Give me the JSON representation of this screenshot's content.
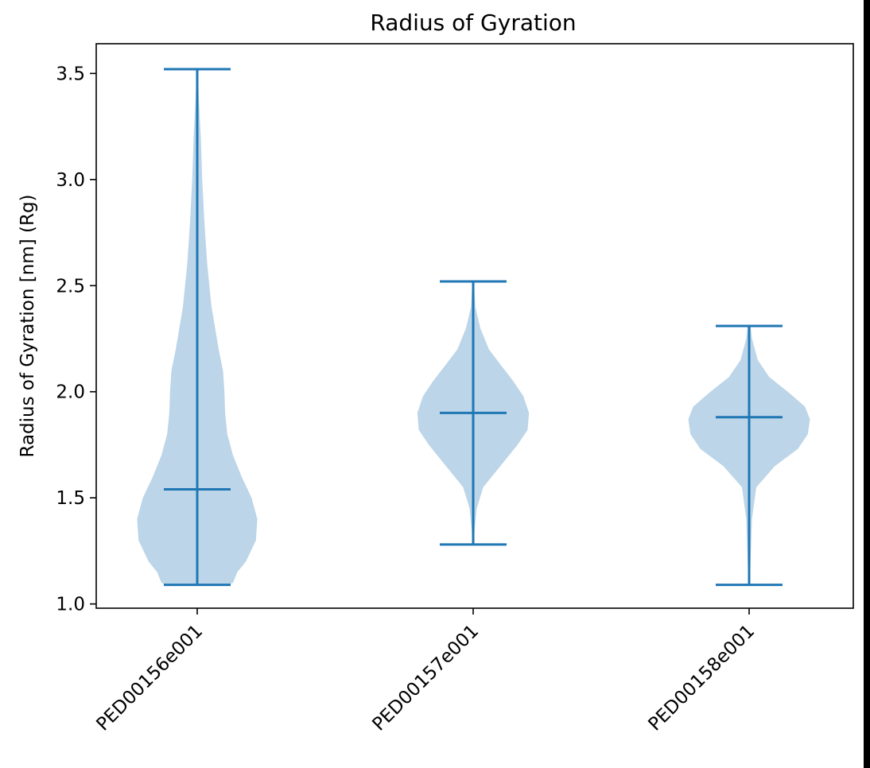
{
  "chart_data": {
    "type": "violin",
    "title": "Radius of Gyration",
    "xlabel": "",
    "ylabel": "Radius of Gyration [nm] (Rg)",
    "ylim": [
      0.98,
      3.64
    ],
    "yticks": [
      1.0,
      1.5,
      2.0,
      2.5,
      3.0,
      3.5
    ],
    "ytick_labels": [
      "1.0",
      "1.5",
      "2.0",
      "2.5",
      "3.0",
      "3.5"
    ],
    "categories": [
      "PED00156e001",
      "PED00157e001",
      "PED00158e001"
    ],
    "grid": false,
    "color": "#1f77b4",
    "fill_color": "#bcd5e8",
    "series": [
      {
        "category": "PED00156e001",
        "min": 1.09,
        "max": 3.52,
        "median": 1.54,
        "density": [
          [
            1.09,
            0.44
          ],
          [
            1.1,
            0.5
          ],
          [
            1.15,
            0.56
          ],
          [
            1.2,
            0.68
          ],
          [
            1.3,
            0.82
          ],
          [
            1.4,
            0.84
          ],
          [
            1.5,
            0.76
          ],
          [
            1.6,
            0.62
          ],
          [
            1.7,
            0.5
          ],
          [
            1.8,
            0.42
          ],
          [
            1.9,
            0.39
          ],
          [
            2.0,
            0.38
          ],
          [
            2.1,
            0.36
          ],
          [
            2.2,
            0.3
          ],
          [
            2.4,
            0.2
          ],
          [
            2.6,
            0.14
          ],
          [
            2.8,
            0.1
          ],
          [
            3.0,
            0.07
          ],
          [
            3.2,
            0.05
          ],
          [
            3.4,
            0.02
          ],
          [
            3.52,
            0.01
          ]
        ]
      },
      {
        "category": "PED00157e001",
        "min": 1.28,
        "max": 2.52,
        "median": 1.9,
        "density": [
          [
            1.28,
            0.01
          ],
          [
            1.35,
            0.02
          ],
          [
            1.45,
            0.05
          ],
          [
            1.55,
            0.14
          ],
          [
            1.65,
            0.38
          ],
          [
            1.75,
            0.62
          ],
          [
            1.82,
            0.76
          ],
          [
            1.9,
            0.78
          ],
          [
            1.98,
            0.7
          ],
          [
            2.05,
            0.56
          ],
          [
            2.12,
            0.4
          ],
          [
            2.2,
            0.22
          ],
          [
            2.3,
            0.1
          ],
          [
            2.4,
            0.03
          ],
          [
            2.52,
            0.01
          ]
        ]
      },
      {
        "category": "PED00158e001",
        "min": 1.09,
        "max": 2.31,
        "median": 1.88,
        "density": [
          [
            1.09,
            0.01
          ],
          [
            1.2,
            0.02
          ],
          [
            1.4,
            0.04
          ],
          [
            1.55,
            0.1
          ],
          [
            1.65,
            0.36
          ],
          [
            1.73,
            0.68
          ],
          [
            1.8,
            0.82
          ],
          [
            1.87,
            0.85
          ],
          [
            1.93,
            0.78
          ],
          [
            2.0,
            0.54
          ],
          [
            2.07,
            0.28
          ],
          [
            2.15,
            0.12
          ],
          [
            2.25,
            0.04
          ],
          [
            2.31,
            0.02
          ]
        ]
      }
    ]
  }
}
